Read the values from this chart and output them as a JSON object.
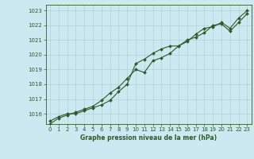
{
  "title": "Graphe pression niveau de la mer (hPa)",
  "bg_color": "#cce8f0",
  "grid_color": "#b0d0d8",
  "line_color": "#2d5a27",
  "xlim": [
    -0.5,
    23.5
  ],
  "ylim": [
    1015.3,
    1023.4
  ],
  "yticks": [
    1016,
    1017,
    1018,
    1019,
    1020,
    1021,
    1022,
    1023
  ],
  "xticks": [
    0,
    1,
    2,
    3,
    4,
    5,
    6,
    7,
    8,
    9,
    10,
    11,
    12,
    13,
    14,
    15,
    16,
    17,
    18,
    19,
    20,
    21,
    22,
    23
  ],
  "series1_x": [
    0,
    1,
    2,
    3,
    4,
    5,
    6,
    7,
    8,
    9,
    10,
    11,
    12,
    13,
    14,
    15,
    16,
    17,
    18,
    19,
    20,
    21,
    22,
    23
  ],
  "series1_y": [
    1015.5,
    1015.8,
    1016.0,
    1016.0,
    1016.2,
    1016.4,
    1016.6,
    1016.9,
    1017.5,
    1018.0,
    1019.4,
    1019.7,
    1020.1,
    1020.4,
    1020.6,
    1020.6,
    1021.0,
    1021.2,
    1021.5,
    1022.0,
    1022.1,
    1021.6,
    1022.2,
    1022.8
  ],
  "series2_x": [
    0,
    1,
    2,
    3,
    4,
    5,
    6,
    7,
    8,
    9,
    10,
    11,
    12,
    13,
    14,
    15,
    16,
    17,
    18,
    19,
    20,
    21,
    22,
    23
  ],
  "series2_y": [
    1015.3,
    1015.7,
    1015.9,
    1016.1,
    1016.3,
    1016.5,
    1016.9,
    1017.4,
    1017.8,
    1018.4,
    1019.0,
    1018.8,
    1019.6,
    1019.8,
    1020.1,
    1020.6,
    1020.9,
    1021.4,
    1021.8,
    1021.9,
    1022.2,
    1021.8,
    1022.5,
    1023.0
  ],
  "tick_fontsize": 5,
  "xlabel_fontsize": 5.5,
  "marker_size": 2.0,
  "line_width": 0.8
}
